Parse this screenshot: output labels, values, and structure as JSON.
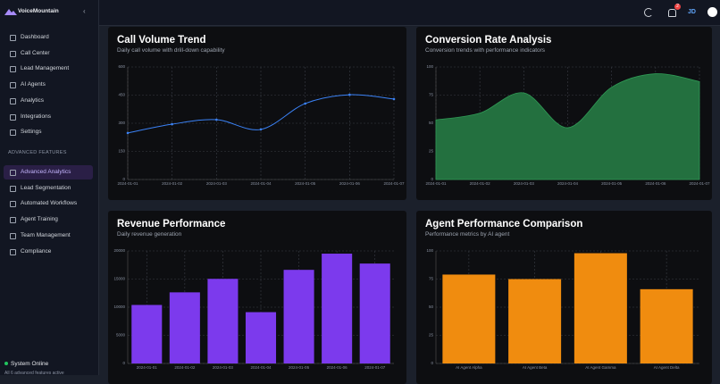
{
  "sidebar": {
    "brand": "VoiceMountain",
    "nav": [
      "Dashboard",
      "Call Center",
      "Lead Management",
      "AI Agents",
      "Analytics",
      "Integrations",
      "Settings"
    ],
    "section_label": "ADVANCED FEATURES",
    "advanced": [
      "Advanced Analytics",
      "Lead Segmentation",
      "Automated Workflows",
      "Agent Training",
      "Team Management",
      "Compliance"
    ],
    "status": "System Online",
    "status_note": "All 6 advanced features active"
  },
  "topbar": {
    "notification_count": "2",
    "avatar": "JD"
  },
  "chart_data": [
    {
      "type": "line",
      "title": "Call Volume Trend",
      "subtitle": "Daily call volume with drill-down capability",
      "categories": [
        "2024-01-01",
        "2024-01-02",
        "2024-01-03",
        "2024-01-04",
        "2024-01-05",
        "2024-01-06",
        "2024-01-07"
      ],
      "values": [
        248,
        295,
        319,
        267,
        405,
        452,
        429
      ],
      "color": "#3b82f6",
      "ylim": [
        0,
        600
      ],
      "yticks": [
        0,
        150,
        300,
        450,
        600
      ],
      "grid": true
    },
    {
      "type": "area",
      "title": "Conversion Rate Analysis",
      "subtitle": "Conversion trends with performance indicators",
      "categories": [
        "2024-01-01",
        "2024-01-02",
        "2024-01-03",
        "2024-01-04",
        "2024-01-05",
        "2024-01-06",
        "2024-01-07"
      ],
      "values": [
        53,
        59,
        77,
        46,
        82,
        94,
        87
      ],
      "color": "#23703f",
      "ylim": [
        0,
        100
      ],
      "yticks": [
        0,
        25,
        50,
        75,
        100
      ],
      "grid": true
    },
    {
      "type": "bar",
      "title": "Revenue Performance",
      "subtitle": "Daily revenue generation",
      "categories": [
        "2024-01-01",
        "2024-01-02",
        "2024-01-03",
        "2024-01-04",
        "2024-01-05",
        "2024-01-06",
        "2024-01-07"
      ],
      "values": [
        10400,
        12640,
        15040,
        9120,
        16640,
        19520,
        17760
      ],
      "color": "#7c3aed",
      "ylim": [
        0,
        20000
      ],
      "yticks": [
        0,
        5000,
        10000,
        15000,
        20000
      ],
      "grid": true
    },
    {
      "type": "bar",
      "title": "Agent Performance Comparison",
      "subtitle": "Performance metrics by AI agent",
      "categories": [
        "AI Agent Alpha",
        "AI Agent Beta",
        "AI Agent Gamma",
        "AI Agent Delta"
      ],
      "values": [
        79,
        75,
        98,
        66
      ],
      "color": "#f08c0f",
      "ylim": [
        0,
        100
      ],
      "yticks": [
        0,
        25,
        50,
        75,
        100
      ],
      "grid": true
    }
  ]
}
